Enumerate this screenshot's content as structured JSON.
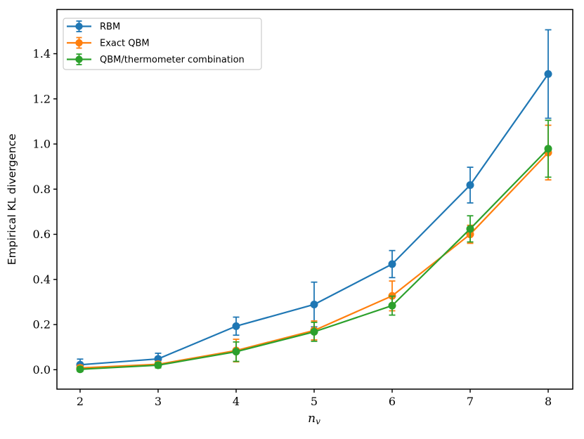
{
  "figure": {
    "background": "#ffffff",
    "text_color": "#000000",
    "spine_color": "#000000",
    "legend_border_color": "#cccccc"
  },
  "chart_data": {
    "type": "line",
    "title": "",
    "xlabel": "n_v",
    "xlabel_main": "n",
    "xlabel_sub": "v",
    "ylabel": "Empirical KL divergence",
    "x": [
      2,
      3,
      4,
      5,
      6,
      7,
      8
    ],
    "xticklabels": [
      "2",
      "3",
      "4",
      "5",
      "6",
      "7",
      "8"
    ],
    "yticks": [
      0.0,
      0.2,
      0.4,
      0.6,
      0.8,
      1.0,
      1.2,
      1.4
    ],
    "yticklabels": [
      "0.0",
      "0.2",
      "0.4",
      "0.6",
      "0.8",
      "1.0",
      "1.2",
      "1.4"
    ],
    "xlim": [
      1.703,
      8.315
    ],
    "ylim": [
      -0.086,
      1.596
    ],
    "grid": false,
    "legend_position": "upper-left",
    "marker": "circle",
    "error_bars": true,
    "series": [
      {
        "name": "RBM",
        "color": "#1f77b4",
        "values": [
          0.022,
          0.048,
          0.193,
          0.289,
          0.468,
          0.818,
          1.31
        ],
        "errors": [
          0.025,
          0.025,
          0.04,
          0.099,
          0.06,
          0.079,
          0.196
        ]
      },
      {
        "name": "Exact QBM",
        "color": "#ff7f0e",
        "values": [
          0.008,
          0.024,
          0.085,
          0.174,
          0.327,
          0.6,
          0.962
        ],
        "errors": [
          0.012,
          0.012,
          0.05,
          0.042,
          0.066,
          0.04,
          0.121
        ]
      },
      {
        "name": "QBM/thermometer combination",
        "color": "#2ca02c",
        "values": [
          0.002,
          0.02,
          0.08,
          0.168,
          0.284,
          0.624,
          0.979
        ],
        "errors": [
          0.01,
          0.012,
          0.043,
          0.042,
          0.042,
          0.058,
          0.126
        ]
      }
    ]
  }
}
